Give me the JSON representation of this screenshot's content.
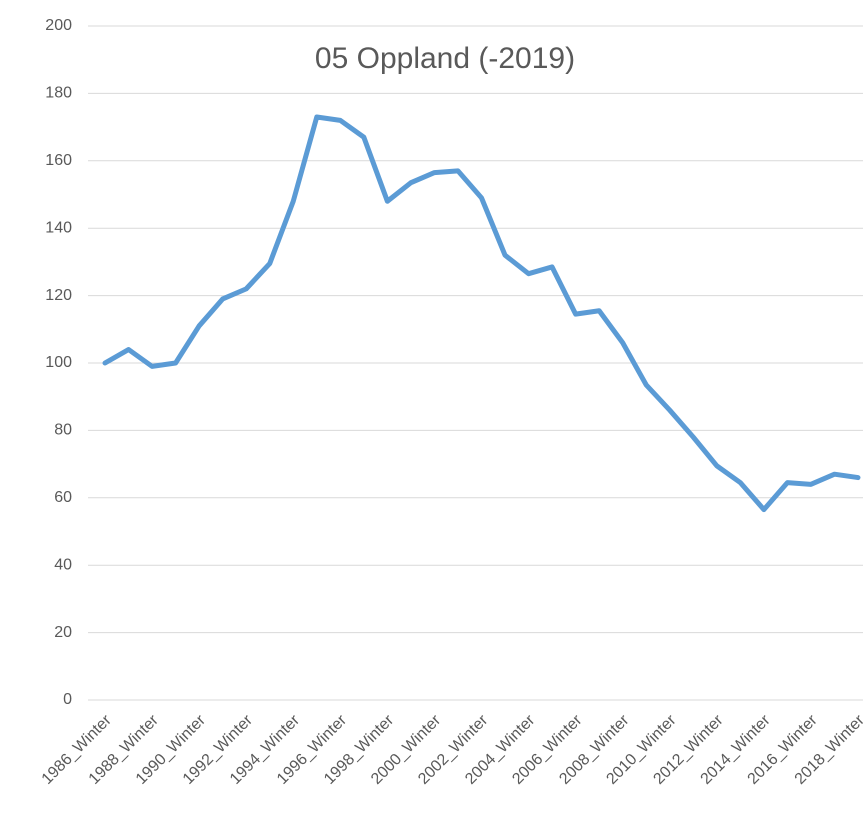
{
  "chart_data": {
    "type": "line",
    "title": "05 Oppland (-2019)",
    "categories": [
      "1986_Winter",
      null,
      "1988_Winter",
      null,
      "1990_Winter",
      null,
      "1992_Winter",
      null,
      "1994_Winter",
      null,
      "1996_Winter",
      null,
      "1998_Winter",
      null,
      "2000_Winter",
      null,
      "2002_Winter",
      null,
      "2004_Winter",
      null,
      "2006_Winter",
      null,
      "2008_Winter",
      null,
      "2010_Winter",
      null,
      "2012_Winter",
      null,
      "2014_Winter",
      null,
      "2016_Winter",
      null,
      "2018_Winter"
    ],
    "series": [
      {
        "name": "05 Oppland",
        "color": "#5b9bd5",
        "values": [
          100,
          104,
          99,
          100,
          111,
          119,
          122,
          129.5,
          148,
          173,
          172,
          167,
          148,
          153.5,
          156.5,
          157,
          149,
          132,
          126.5,
          128.5,
          114.5,
          115.5,
          106,
          93.5,
          86,
          78,
          69.5,
          64.5,
          56.5,
          64.5,
          64,
          67,
          66
        ]
      }
    ],
    "ylim": [
      0,
      200
    ],
    "yticks": [
      0,
      20,
      40,
      60,
      80,
      100,
      120,
      140,
      160,
      180,
      200
    ],
    "grid": true
  }
}
